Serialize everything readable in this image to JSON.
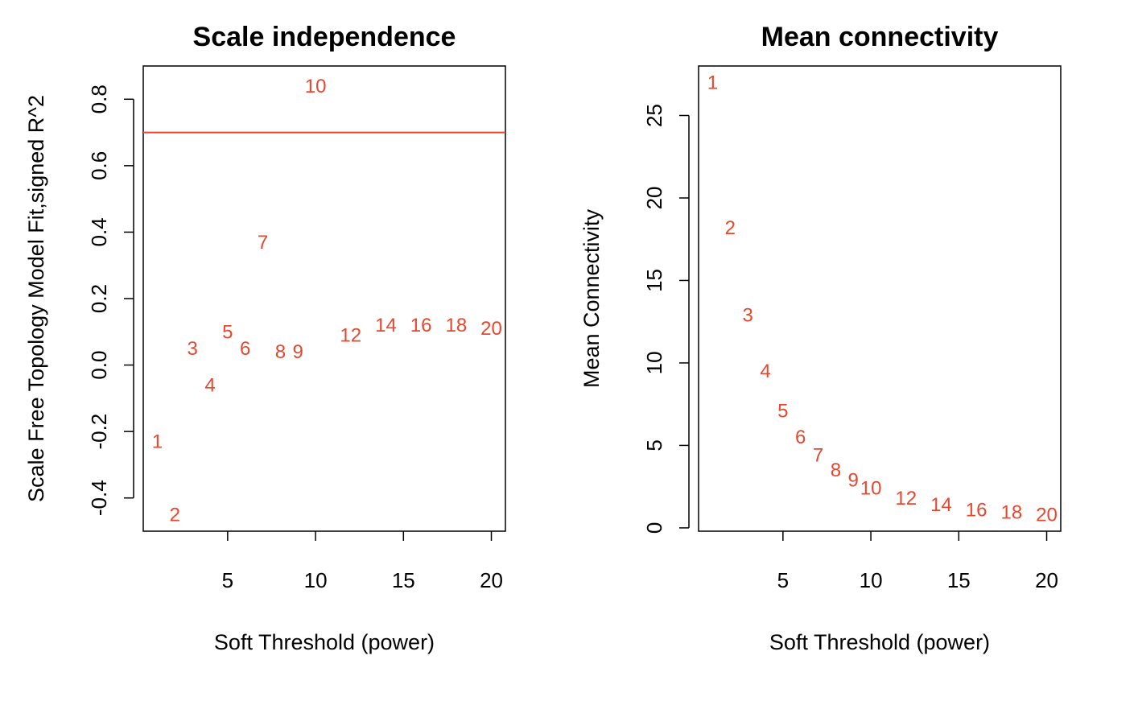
{
  "chart_data": [
    {
      "type": "scatter",
      "title": "Scale independence",
      "xlabel": "Soft Threshold (power)",
      "ylabel": "Scale Free Topology Model Fit,signed R^2",
      "xlim": [
        0.2,
        20.8
      ],
      "ylim": [
        -0.5,
        0.9
      ],
      "xticks": [
        5,
        10,
        15,
        20
      ],
      "yticks": [
        -0.4,
        -0.2,
        0.0,
        0.2,
        0.4,
        0.6,
        0.8
      ],
      "ytick_labels": [
        "-0.4",
        "-0.2",
        "0.0",
        "0.2",
        "0.4",
        "0.6",
        "0.8"
      ],
      "grid": false,
      "hline": 0.7,
      "point_color": "#E8472F",
      "points": [
        {
          "label": "1",
          "x": 1,
          "y": -0.23
        },
        {
          "label": "2",
          "x": 2,
          "y": -0.45
        },
        {
          "label": "3",
          "x": 3,
          "y": 0.05
        },
        {
          "label": "4",
          "x": 4,
          "y": -0.06
        },
        {
          "label": "5",
          "x": 5,
          "y": 0.1
        },
        {
          "label": "6",
          "x": 6,
          "y": 0.05
        },
        {
          "label": "7",
          "x": 7,
          "y": 0.37
        },
        {
          "label": "8",
          "x": 8,
          "y": 0.04
        },
        {
          "label": "9",
          "x": 9,
          "y": 0.04
        },
        {
          "label": "10",
          "x": 10,
          "y": 0.84
        },
        {
          "label": "12",
          "x": 12,
          "y": 0.09
        },
        {
          "label": "14",
          "x": 14,
          "y": 0.12
        },
        {
          "label": "16",
          "x": 16,
          "y": 0.12
        },
        {
          "label": "18",
          "x": 18,
          "y": 0.12
        },
        {
          "label": "20",
          "x": 20,
          "y": 0.11
        }
      ]
    },
    {
      "type": "scatter",
      "title": "Mean connectivity",
      "xlabel": "Soft Threshold (power)",
      "ylabel": "Mean Connectivity",
      "xlim": [
        0.2,
        20.8
      ],
      "ylim": [
        -0.2,
        28
      ],
      "xticks": [
        5,
        10,
        15,
        20
      ],
      "yticks": [
        0,
        5,
        10,
        15,
        20,
        25
      ],
      "ytick_labels": [
        "0",
        "5",
        "10",
        "15",
        "20",
        "25"
      ],
      "grid": false,
      "point_color": "#E8472F",
      "points": [
        {
          "label": "1",
          "x": 1,
          "y": 27.0
        },
        {
          "label": "2",
          "x": 2,
          "y": 18.2
        },
        {
          "label": "3",
          "x": 3,
          "y": 12.9
        },
        {
          "label": "4",
          "x": 4,
          "y": 9.5
        },
        {
          "label": "5",
          "x": 5,
          "y": 7.1
        },
        {
          "label": "6",
          "x": 6,
          "y": 5.5
        },
        {
          "label": "7",
          "x": 7,
          "y": 4.4
        },
        {
          "label": "8",
          "x": 8,
          "y": 3.5
        },
        {
          "label": "9",
          "x": 9,
          "y": 2.9
        },
        {
          "label": "10",
          "x": 10,
          "y": 2.4
        },
        {
          "label": "12",
          "x": 12,
          "y": 1.8
        },
        {
          "label": "14",
          "x": 14,
          "y": 1.4
        },
        {
          "label": "16",
          "x": 16,
          "y": 1.1
        },
        {
          "label": "18",
          "x": 18,
          "y": 0.95
        },
        {
          "label": "20",
          "x": 20,
          "y": 0.8
        }
      ]
    }
  ]
}
